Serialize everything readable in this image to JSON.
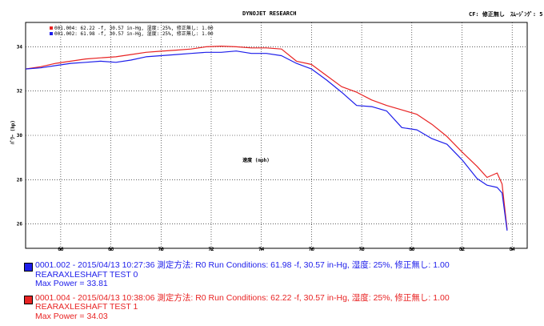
{
  "header": {
    "title": "DYNOJET RESEARCH",
    "info": "CF: 修正無し　ｽﾑｰｼﾞﾝｸﾞ: 5"
  },
  "inset_legend": [
    "001.004: 62.22 -f, 30.57 in-Hg, 湿度: 25%, 修正無し: 1.00",
    "001.002: 61.98 -f, 30.57 in-Hg, 湿度: 25%, 修正無し: 1.00"
  ],
  "colors": {
    "series_002": "#1d1dea",
    "series_004": "#e82323",
    "grid": "#000000"
  },
  "runs": [
    {
      "line1": "0001.002 - 2015/04/13 10:27:36  測定方法: R0  Run Conditions: 61.98 -f, 30.57 in-Hg,  湿度: 25%, 修正無し: 1.00",
      "line2": "REARAXLESHAFT TEST 0",
      "line3": "Max Power = 33.81",
      "color": "#1d1dea"
    },
    {
      "line1": "0001.004 - 2015/04/13 10:38:06  測定方法: R0  Run Conditions: 62.22 -f, 30.57 in-Hg,  湿度: 25%, 修正無し: 1.00",
      "line2": "REARAXLESHAFT TEST 1",
      "line3": "Max Power = 34.03",
      "color": "#e82323"
    }
  ],
  "chart_data": {
    "type": "line",
    "title": "DYNOJET RESEARCH",
    "xlabel": "速度 (mph)",
    "ylabel": "ﾊﾟﾜｰ (hp)",
    "xlim": [
      64.6,
      84.6
    ],
    "ylim": [
      24.9,
      35.1
    ],
    "xticks": [
      66,
      68,
      70,
      72,
      74,
      76,
      78,
      80,
      82,
      84
    ],
    "yticks": [
      26,
      28,
      30,
      32,
      34
    ],
    "grid": true,
    "series": [
      {
        "name": "001.002",
        "color": "#1d1dea",
        "x": [
          64.6,
          65.2,
          65.8,
          66.4,
          67.0,
          67.6,
          68.2,
          68.8,
          69.4,
          70.0,
          70.6,
          71.2,
          71.8,
          72.4,
          73.0,
          73.6,
          74.2,
          74.8,
          75.4,
          76.0,
          76.6,
          77.2,
          77.8,
          78.4,
          79.0,
          79.6,
          80.2,
          80.8,
          81.4,
          82.0,
          82.6,
          83.0,
          83.4,
          83.6,
          83.8
        ],
        "values": [
          33.0,
          33.05,
          33.15,
          33.25,
          33.3,
          33.35,
          33.3,
          33.4,
          33.55,
          33.6,
          33.65,
          33.7,
          33.75,
          33.75,
          33.81,
          33.7,
          33.7,
          33.6,
          33.25,
          33.0,
          32.5,
          31.95,
          31.35,
          31.3,
          31.1,
          30.35,
          30.25,
          29.85,
          29.6,
          28.9,
          28.05,
          27.75,
          27.65,
          27.4,
          25.7
        ]
      },
      {
        "name": "001.004",
        "color": "#e82323",
        "x": [
          64.6,
          65.2,
          65.8,
          66.4,
          67.0,
          67.6,
          68.2,
          68.8,
          69.4,
          70.0,
          70.6,
          71.2,
          71.8,
          72.4,
          73.0,
          73.6,
          74.2,
          74.8,
          75.4,
          76.0,
          76.6,
          77.2,
          77.8,
          78.4,
          79.0,
          79.6,
          80.2,
          80.8,
          81.4,
          82.0,
          82.6,
          83.0,
          83.4,
          83.6,
          83.8
        ],
        "values": [
          33.0,
          33.1,
          33.25,
          33.35,
          33.45,
          33.5,
          33.55,
          33.65,
          33.75,
          33.8,
          33.85,
          33.9,
          34.0,
          34.03,
          34.0,
          33.95,
          33.95,
          33.9,
          33.35,
          33.2,
          32.7,
          32.2,
          31.95,
          31.6,
          31.35,
          31.15,
          30.95,
          30.5,
          29.95,
          29.25,
          28.6,
          28.1,
          28.3,
          27.8,
          25.75
        ]
      }
    ]
  }
}
